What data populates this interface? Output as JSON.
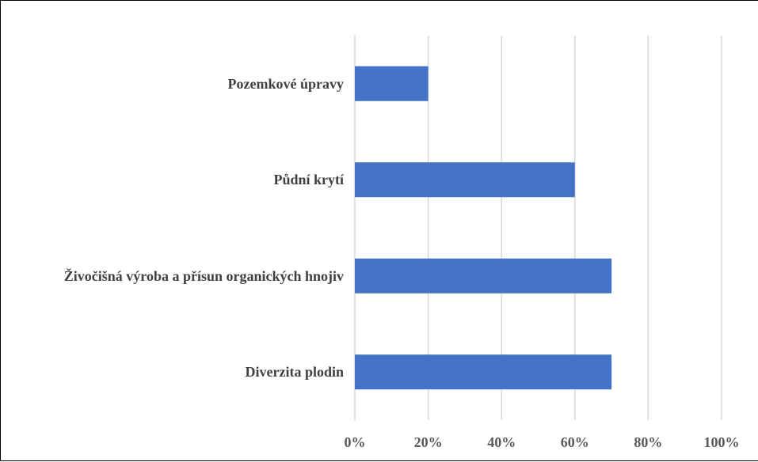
{
  "chart_data": {
    "type": "bar",
    "orientation": "horizontal",
    "categories": [
      "Pozemkové úpravy",
      "Půdní krytí",
      "Živočišná výroba a přísun organických hnojiv",
      "Diverzita plodin"
    ],
    "values": [
      20,
      60,
      70,
      70
    ],
    "color": "#4472c4",
    "xlim": [
      0,
      100
    ],
    "xticks": [
      {
        "value": 0,
        "label": "0%"
      },
      {
        "value": 20,
        "label": "20%"
      },
      {
        "value": 40,
        "label": "40%"
      },
      {
        "value": 60,
        "label": "60%"
      },
      {
        "value": 80,
        "label": "80%"
      },
      {
        "value": 100,
        "label": "100%"
      }
    ],
    "grid": true
  }
}
